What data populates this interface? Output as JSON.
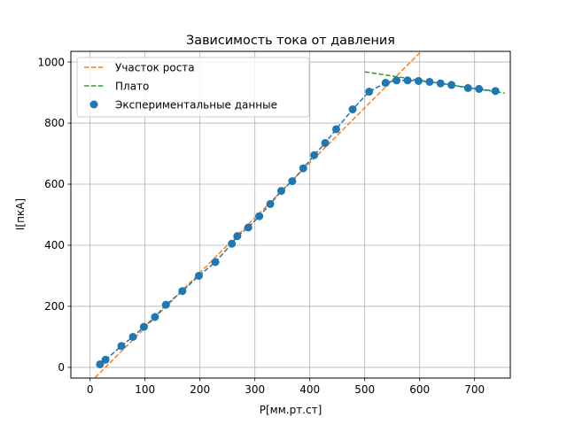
{
  "chart_data": {
    "type": "scatter",
    "title": "Зависимость тока от давления",
    "xlabel": "P[мм.рт.ст]",
    "ylabel": "I[пкА]",
    "xlim": [
      -35,
      765
    ],
    "ylim": [
      -35,
      1035
    ],
    "xticks": [
      0,
      100,
      200,
      300,
      400,
      500,
      600,
      700
    ],
    "yticks": [
      0,
      200,
      400,
      600,
      800,
      1000
    ],
    "grid": true,
    "legend_position": "top-left",
    "colors": {
      "growth_fit": "#ff7f0e",
      "plateau_fit": "#2ca02c",
      "data": "#1f77b4"
    },
    "series": [
      {
        "name": "Участок роста",
        "kind": "line",
        "style": "dashed",
        "color": "#ff7f0e",
        "x": [
          0,
          600
        ],
        "y": [
          -50,
          1030
        ]
      },
      {
        "name": "Плато",
        "kind": "line",
        "style": "dashed",
        "color": "#2ca02c",
        "x": [
          500,
          755
        ],
        "y": [
          968,
          898
        ]
      },
      {
        "name": "Экспериментальные данные",
        "kind": "scatter",
        "color": "#1f77b4",
        "x": [
          18,
          28,
          57,
          78,
          98,
          118,
          138,
          168,
          198,
          228,
          258,
          268,
          288,
          308,
          328,
          348,
          368,
          388,
          408,
          428,
          448,
          478,
          508,
          538,
          558,
          578,
          598,
          618,
          638,
          658,
          688,
          708,
          738
        ],
        "y": [
          10,
          25,
          70,
          100,
          133,
          165,
          205,
          250,
          300,
          345,
          405,
          430,
          458,
          495,
          535,
          578,
          610,
          652,
          695,
          735,
          780,
          845,
          903,
          932,
          940,
          940,
          938,
          935,
          930,
          925,
          915,
          912,
          905
        ]
      }
    ],
    "connector": {
      "style": "dashed",
      "color": "#1f77b4"
    }
  }
}
